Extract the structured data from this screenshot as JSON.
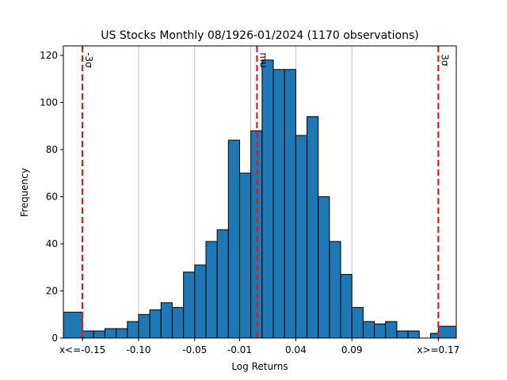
{
  "chart_data": {
    "type": "bar",
    "title": "US Stocks Monthly 08/1926-01/2024 (1170 observations)",
    "xlabel": "Log Returns",
    "ylabel": "Frequency",
    "xlim": [
      -0.167,
      0.183
    ],
    "ylim": [
      0,
      124
    ],
    "grid": "vertical",
    "bar_color": "#1f77b4",
    "edge_color": "#000000",
    "line_color": "#e31a1c",
    "bin_width": 0.01,
    "bins": [
      {
        "x0": -0.167,
        "x1": -0.15,
        "value": 11
      },
      {
        "x0": -0.15,
        "x1": -0.14,
        "value": 3
      },
      {
        "x0": -0.14,
        "x1": -0.13,
        "value": 3
      },
      {
        "x0": -0.13,
        "x1": -0.12,
        "value": 4
      },
      {
        "x0": -0.12,
        "x1": -0.11,
        "value": 4
      },
      {
        "x0": -0.11,
        "x1": -0.1,
        "value": 7
      },
      {
        "x0": -0.1,
        "x1": -0.09,
        "value": 10
      },
      {
        "x0": -0.09,
        "x1": -0.08,
        "value": 12
      },
      {
        "x0": -0.08,
        "x1": -0.07,
        "value": 15
      },
      {
        "x0": -0.07,
        "x1": -0.06,
        "value": 13
      },
      {
        "x0": -0.06,
        "x1": -0.05,
        "value": 28
      },
      {
        "x0": -0.05,
        "x1": -0.04,
        "value": 31
      },
      {
        "x0": -0.04,
        "x1": -0.03,
        "value": 41
      },
      {
        "x0": -0.03,
        "x1": -0.02,
        "value": 46
      },
      {
        "x0": -0.02,
        "x1": -0.01,
        "value": 84
      },
      {
        "x0": -0.01,
        "x1": 0.0,
        "value": 70
      },
      {
        "x0": 0.0,
        "x1": 0.01,
        "value": 88
      },
      {
        "x0": 0.01,
        "x1": 0.02,
        "value": 118
      },
      {
        "x0": 0.02,
        "x1": 0.03,
        "value": 114
      },
      {
        "x0": 0.03,
        "x1": 0.04,
        "value": 114
      },
      {
        "x0": 0.04,
        "x1": 0.05,
        "value": 86
      },
      {
        "x0": 0.05,
        "x1": 0.06,
        "value": 94
      },
      {
        "x0": 0.06,
        "x1": 0.07,
        "value": 60
      },
      {
        "x0": 0.07,
        "x1": 0.08,
        "value": 41
      },
      {
        "x0": 0.08,
        "x1": 0.09,
        "value": 27
      },
      {
        "x0": 0.09,
        "x1": 0.1,
        "value": 13
      },
      {
        "x0": 0.1,
        "x1": 0.11,
        "value": 7
      },
      {
        "x0": 0.11,
        "x1": 0.12,
        "value": 6
      },
      {
        "x0": 0.12,
        "x1": 0.13,
        "value": 7
      },
      {
        "x0": 0.13,
        "x1": 0.14,
        "value": 3
      },
      {
        "x0": 0.14,
        "x1": 0.15,
        "value": 3
      },
      {
        "x0": 0.15,
        "x1": 0.16,
        "value": 0
      },
      {
        "x0": 0.16,
        "x1": 0.17,
        "value": 2
      },
      {
        "x0": 0.183,
        "x1": 0.183,
        "value": 0
      }
    ],
    "overflow_bin": {
      "x0": 0.167,
      "x1": 0.183,
      "value": 5
    },
    "x_ticks": [
      {
        "value": -0.15,
        "label": "x<=-0.15"
      },
      {
        "value": -0.1,
        "label": "-0.10"
      },
      {
        "value": -0.05,
        "label": "-0.05"
      },
      {
        "value": -0.01,
        "label": "-0.01"
      },
      {
        "value": 0.04,
        "label": "0.04"
      },
      {
        "value": 0.09,
        "label": "0.09"
      },
      {
        "value": 0.167,
        "label": "x>=0.17"
      }
    ],
    "grid_x": [
      -0.1,
      -0.05,
      0.0,
      0.04,
      0.09
    ],
    "y_ticks": [
      0,
      20,
      40,
      60,
      80,
      100,
      120
    ],
    "vlines": [
      {
        "value": -0.15,
        "label": "-3σ"
      },
      {
        "value": 0.0055,
        "label": "mu"
      },
      {
        "value": 0.167,
        "label": "3σ"
      }
    ]
  }
}
